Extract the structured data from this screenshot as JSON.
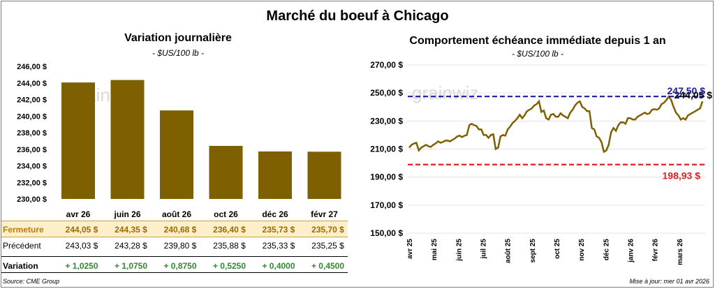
{
  "title": "Marché du boeuf à Chicago",
  "left": {
    "title": "Variation journalière",
    "subtitle": "- $US/100 lb -",
    "watermark": "grainwiz",
    "chart_data": {
      "type": "bar",
      "categories": [
        "avr 26",
        "juin 26",
        "août 26",
        "oct 26",
        "déc 26",
        "févr 27"
      ],
      "values": [
        244.05,
        244.35,
        240.68,
        236.4,
        235.73,
        235.7
      ],
      "ylim": [
        230,
        246
      ],
      "yticks": [
        "230,00 $",
        "232,00 $",
        "234,00 $",
        "236,00 $",
        "238,00 $",
        "240,00 $",
        "242,00 $",
        "244,00 $",
        "246,00 $"
      ],
      "bar_color": "#7f6000"
    }
  },
  "table": {
    "rows": [
      {
        "label": "Fermeture",
        "cells": [
          "244,05  $",
          "244,35  $",
          "240,68  $",
          "236,40  $",
          "235,73  $",
          "235,70  $"
        ]
      },
      {
        "label": "Précédent",
        "cells": [
          "243,03  $",
          "243,28  $",
          "239,80  $",
          "235,88  $",
          "235,33  $",
          "235,25  $"
        ]
      },
      {
        "label": "Variation",
        "cells": [
          "+ 1,0250",
          "+ 1,0750",
          "+ 0,8750",
          "+ 0,5250",
          "+ 0,4000",
          "+ 0,4500"
        ]
      }
    ]
  },
  "right": {
    "title": "Comportement  échéance immédiate depuis 1 an",
    "subtitle": "- $US/100 lb -",
    "watermark": "grainwiz",
    "chart_data": {
      "type": "line",
      "x_labels": [
        "avr 25",
        "mai 25",
        "juin 25",
        "juil 25",
        "août 25",
        "sept 25",
        "oct 25",
        "nov 25",
        "déc 25",
        "janv 26",
        "févr 26",
        "mars 26"
      ],
      "ylim": [
        150,
        270
      ],
      "yticks": [
        "150,00 $",
        "170,00 $",
        "190,00 $",
        "210,00 $",
        "230,00 $",
        "250,00 $",
        "270,00 $"
      ],
      "series_color": "#7f6000",
      "max_value": 247.5,
      "max_label": "247,50 $",
      "max_color": "#1a1a9c",
      "min_value": 198.93,
      "min_label": "198,93 $",
      "min_color": "#e02020",
      "last_label": "244,05 $",
      "y": [
        211,
        213,
        214,
        214.5,
        209,
        211,
        212,
        213,
        212,
        211.5,
        213,
        214,
        215.5,
        214.5,
        215,
        216,
        216,
        215.5,
        216.5,
        217.5,
        219,
        219.5,
        218.5,
        219.5,
        220,
        227,
        228,
        227,
        226.5,
        224,
        224,
        220,
        220,
        218,
        220,
        220.5,
        210,
        211,
        219,
        220,
        219.5,
        224,
        226,
        228.5,
        230,
        232,
        234.5,
        232,
        234,
        237,
        238,
        239,
        241,
        242,
        244,
        236.5,
        237.5,
        232,
        231,
        234.5,
        235,
        233,
        233,
        235.5,
        234,
        233,
        232,
        236,
        238,
        241,
        243,
        244,
        240,
        239,
        237,
        237,
        225,
        224,
        219,
        218,
        215,
        208,
        209,
        213,
        222,
        225,
        223,
        227,
        229,
        229,
        228,
        232,
        232,
        231,
        231,
        233,
        234,
        235,
        236,
        235,
        235.5,
        238,
        238.5,
        238,
        239,
        242,
        243,
        245,
        247.5,
        245,
        240,
        236,
        234,
        231,
        232,
        231,
        234,
        235,
        236,
        237,
        238,
        239,
        244.05
      ]
    }
  },
  "footer": {
    "source": "Source: CME Group",
    "updated": "Mise à jour: mer 01 avr 2026"
  }
}
